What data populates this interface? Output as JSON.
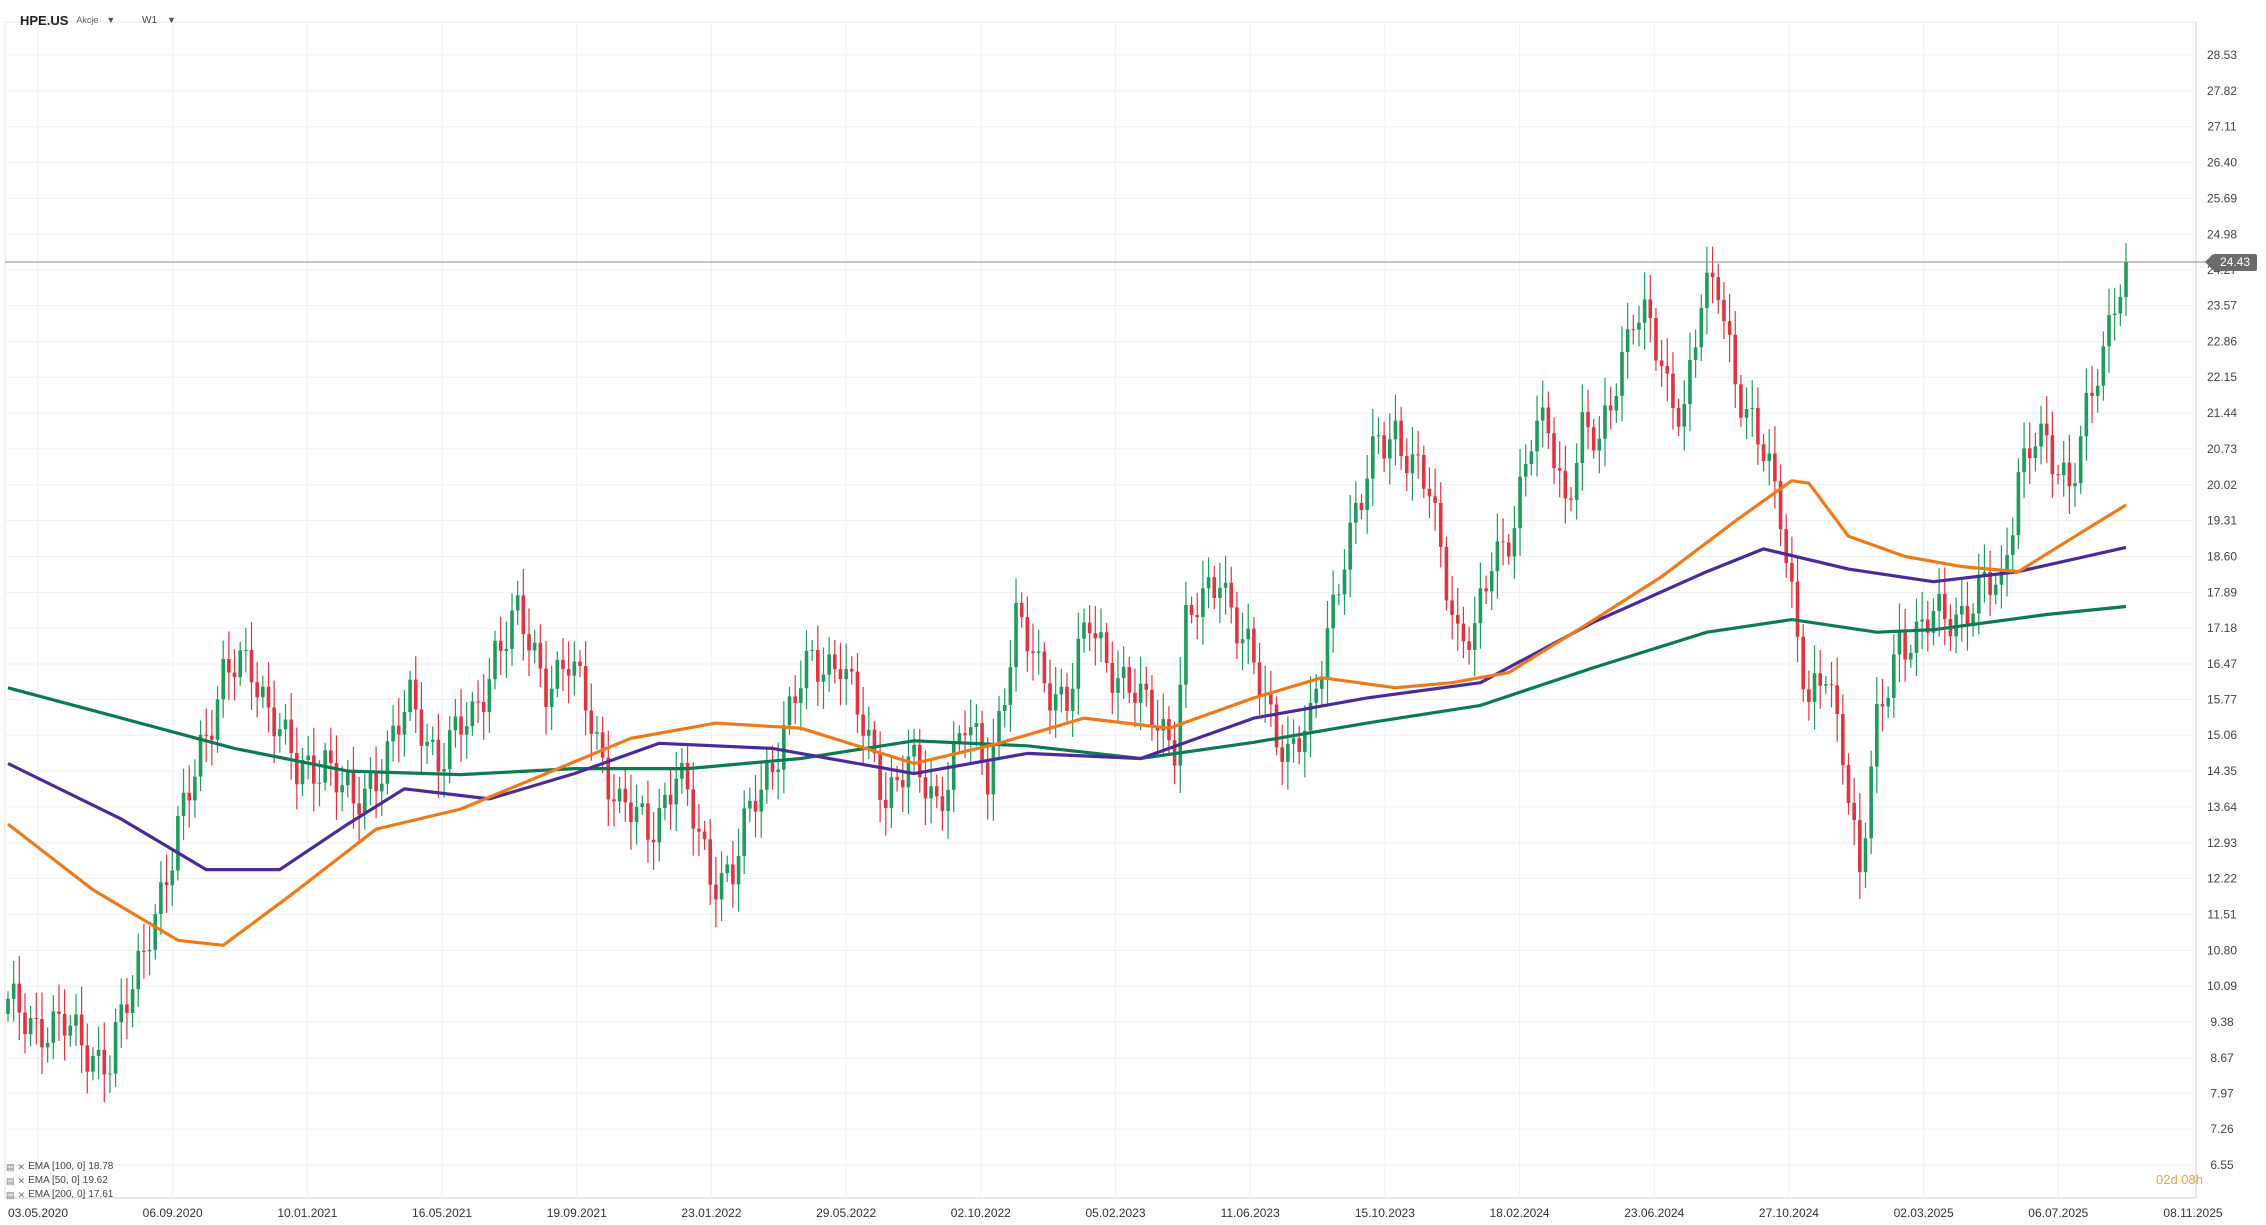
{
  "header": {
    "symbol": "HPE.US",
    "instrument_type": "Akcje",
    "timeframe": "W1"
  },
  "current_price": "24.43",
  "countdown": "02d 08h",
  "legend": [
    {
      "label": "EMA [100, 0]",
      "value": "18.78",
      "color": "#4b2a9a"
    },
    {
      "label": "EMA [50, 0]",
      "value": "19.62",
      "color": "#ef7a1a"
    },
    {
      "label": "EMA [200, 0]",
      "value": "17.61",
      "color": "#0d7a55"
    }
  ],
  "icons": [
    "indicator-icon",
    "close-icon",
    "chevron-down-icon"
  ],
  "chart_data": {
    "type": "candlestick",
    "y_ticks": [
      "28.53",
      "27.82",
      "27.11",
      "26.40",
      "25.69",
      "24.98",
      "24.27",
      "23.57",
      "22.86",
      "22.15",
      "21.44",
      "20.73",
      "20.02",
      "19.31",
      "18.60",
      "17.89",
      "17.18",
      "16.47",
      "15.77",
      "15.06",
      "14.35",
      "13.64",
      "12.93",
      "12.22",
      "11.51",
      "10.80",
      "10.09",
      "9.38",
      "8.67",
      "7.97",
      "7.26",
      "6.55"
    ],
    "ylim": [
      6.55,
      29.0
    ],
    "x_ticks": [
      "03.05.2020",
      "06.09.2020",
      "10.01.2021",
      "16.05.2021",
      "19.09.2021",
      "23.01.2022",
      "29.05.2022",
      "02.10.2022",
      "05.02.2023",
      "11.06.2023",
      "15.10.2023",
      "18.02.2024",
      "23.06.2024",
      "27.10.2024",
      "02.03.2025",
      "06.07.2025",
      "08.11.2025"
    ],
    "up_color": "#1f9b5e",
    "down_color": "#e03440",
    "anchors": [
      [
        0,
        9.6
      ],
      [
        10,
        9.2
      ],
      [
        18,
        8.6
      ],
      [
        22,
        10.0
      ],
      [
        25,
        11.4
      ],
      [
        29,
        12.5
      ],
      [
        34,
        14.9
      ],
      [
        38,
        16.2
      ],
      [
        43,
        16.4
      ],
      [
        47,
        15.5
      ],
      [
        51,
        14.2
      ],
      [
        56,
        14.7
      ],
      [
        61,
        13.5
      ],
      [
        66,
        14.6
      ],
      [
        71,
        15.6
      ],
      [
        76,
        14.7
      ],
      [
        82,
        15.3
      ],
      [
        86,
        16.8
      ],
      [
        90,
        17.3
      ],
      [
        95,
        16.2
      ],
      [
        99,
        16.4
      ],
      [
        103,
        15.4
      ],
      [
        108,
        13.6
      ],
      [
        113,
        13.2
      ],
      [
        118,
        14.3
      ],
      [
        124,
        12.4
      ],
      [
        128,
        12.3
      ],
      [
        132,
        13.8
      ],
      [
        137,
        15.2
      ],
      [
        142,
        16.5
      ],
      [
        147,
        16.6
      ],
      [
        150,
        15.4
      ],
      [
        155,
        14.0
      ],
      [
        159,
        14.4
      ],
      [
        164,
        13.8
      ],
      [
        169,
        15.2
      ],
      [
        173,
        14.3
      ],
      [
        178,
        17.3
      ],
      [
        182,
        16.3
      ],
      [
        187,
        15.8
      ],
      [
        191,
        17.2
      ],
      [
        195,
        16.5
      ],
      [
        200,
        15.6
      ],
      [
        203,
        15.4
      ],
      [
        206,
        15.0
      ],
      [
        208,
        17.2
      ],
      [
        211,
        17.6
      ],
      [
        214,
        18.4
      ],
      [
        218,
        16.9
      ],
      [
        222,
        15.7
      ],
      [
        226,
        14.8
      ],
      [
        230,
        15.1
      ],
      [
        233,
        17.2
      ],
      [
        236,
        18.8
      ],
      [
        239,
        19.6
      ],
      [
        242,
        20.9
      ],
      [
        245,
        21.2
      ],
      [
        248,
        20.3
      ],
      [
        251,
        19.8
      ],
      [
        254,
        18.3
      ],
      [
        256,
        17.1
      ],
      [
        259,
        16.9
      ],
      [
        262,
        18.5
      ],
      [
        266,
        19.4
      ],
      [
        269,
        20.8
      ],
      [
        272,
        21.2
      ],
      [
        275,
        19.8
      ],
      [
        278,
        21.0
      ],
      [
        281,
        20.7
      ],
      [
        284,
        22.3
      ],
      [
        287,
        23.4
      ],
      [
        290,
        23.0
      ],
      [
        293,
        22.0
      ],
      [
        296,
        21.6
      ],
      [
        299,
        23.5
      ],
      [
        302,
        24.0
      ],
      [
        305,
        22.3
      ],
      [
        307,
        21.4
      ],
      [
        310,
        20.5
      ],
      [
        313,
        19.6
      ],
      [
        315,
        18.0
      ],
      [
        318,
        15.5
      ],
      [
        321,
        16.2
      ],
      [
        324,
        15.0
      ],
      [
        327,
        12.3
      ],
      [
        330,
        15.1
      ],
      [
        334,
        17.1
      ],
      [
        337,
        17.0
      ],
      [
        340,
        17.3
      ],
      [
        343,
        17.5
      ],
      [
        346,
        17.6
      ],
      [
        349,
        17.9
      ],
      [
        352,
        18.0
      ],
      [
        355,
        20.4
      ],
      [
        358,
        20.9
      ],
      [
        361,
        20.4
      ],
      [
        364,
        20.2
      ],
      [
        367,
        21.5
      ],
      [
        370,
        22.3
      ],
      [
        372,
        23.7
      ],
      [
        374,
        24.43
      ]
    ],
    "ema_series": [
      {
        "label": "EMA [200, 0]",
        "color": "#0d7a55",
        "points": [
          [
            0,
            16.0
          ],
          [
            20,
            15.4
          ],
          [
            40,
            14.8
          ],
          [
            60,
            14.35
          ],
          [
            80,
            14.28
          ],
          [
            100,
            14.4
          ],
          [
            120,
            14.4
          ],
          [
            140,
            14.6
          ],
          [
            160,
            14.95
          ],
          [
            180,
            14.85
          ],
          [
            200,
            14.6
          ],
          [
            220,
            14.92
          ],
          [
            240,
            15.3
          ],
          [
            260,
            15.65
          ],
          [
            280,
            16.4
          ],
          [
            300,
            17.1
          ],
          [
            315,
            17.35
          ],
          [
            330,
            17.1
          ],
          [
            340,
            17.15
          ],
          [
            360,
            17.45
          ],
          [
            374,
            17.61
          ]
        ]
      },
      {
        "label": "EMA [100, 0]",
        "color": "#4b2a9a",
        "points": [
          [
            0,
            14.5
          ],
          [
            20,
            13.4
          ],
          [
            35,
            12.4
          ],
          [
            48,
            12.4
          ],
          [
            60,
            13.3
          ],
          [
            70,
            14.0
          ],
          [
            85,
            13.8
          ],
          [
            100,
            14.3
          ],
          [
            115,
            14.9
          ],
          [
            135,
            14.8
          ],
          [
            160,
            14.3
          ],
          [
            180,
            14.7
          ],
          [
            200,
            14.6
          ],
          [
            220,
            15.4
          ],
          [
            240,
            15.8
          ],
          [
            260,
            16.1
          ],
          [
            280,
            17.3
          ],
          [
            300,
            18.3
          ],
          [
            310,
            18.75
          ],
          [
            325,
            18.35
          ],
          [
            340,
            18.1
          ],
          [
            355,
            18.3
          ],
          [
            374,
            18.78
          ]
        ]
      },
      {
        "label": "EMA [50, 0]",
        "color": "#ef7a1a",
        "points": [
          [
            0,
            13.3
          ],
          [
            15,
            12.0
          ],
          [
            30,
            11.0
          ],
          [
            38,
            10.9
          ],
          [
            50,
            11.9
          ],
          [
            65,
            13.2
          ],
          [
            80,
            13.6
          ],
          [
            95,
            14.3
          ],
          [
            110,
            15.0
          ],
          [
            125,
            15.3
          ],
          [
            140,
            15.2
          ],
          [
            160,
            14.5
          ],
          [
            175,
            14.9
          ],
          [
            190,
            15.4
          ],
          [
            205,
            15.2
          ],
          [
            220,
            15.8
          ],
          [
            232,
            16.2
          ],
          [
            245,
            16.0
          ],
          [
            255,
            16.1
          ],
          [
            265,
            16.3
          ],
          [
            278,
            17.2
          ],
          [
            292,
            18.2
          ],
          [
            305,
            19.3
          ],
          [
            315,
            20.1
          ],
          [
            318,
            20.05
          ],
          [
            325,
            19.0
          ],
          [
            335,
            18.6
          ],
          [
            345,
            18.4
          ],
          [
            355,
            18.3
          ],
          [
            365,
            19.0
          ],
          [
            374,
            19.62
          ]
        ]
      }
    ]
  }
}
